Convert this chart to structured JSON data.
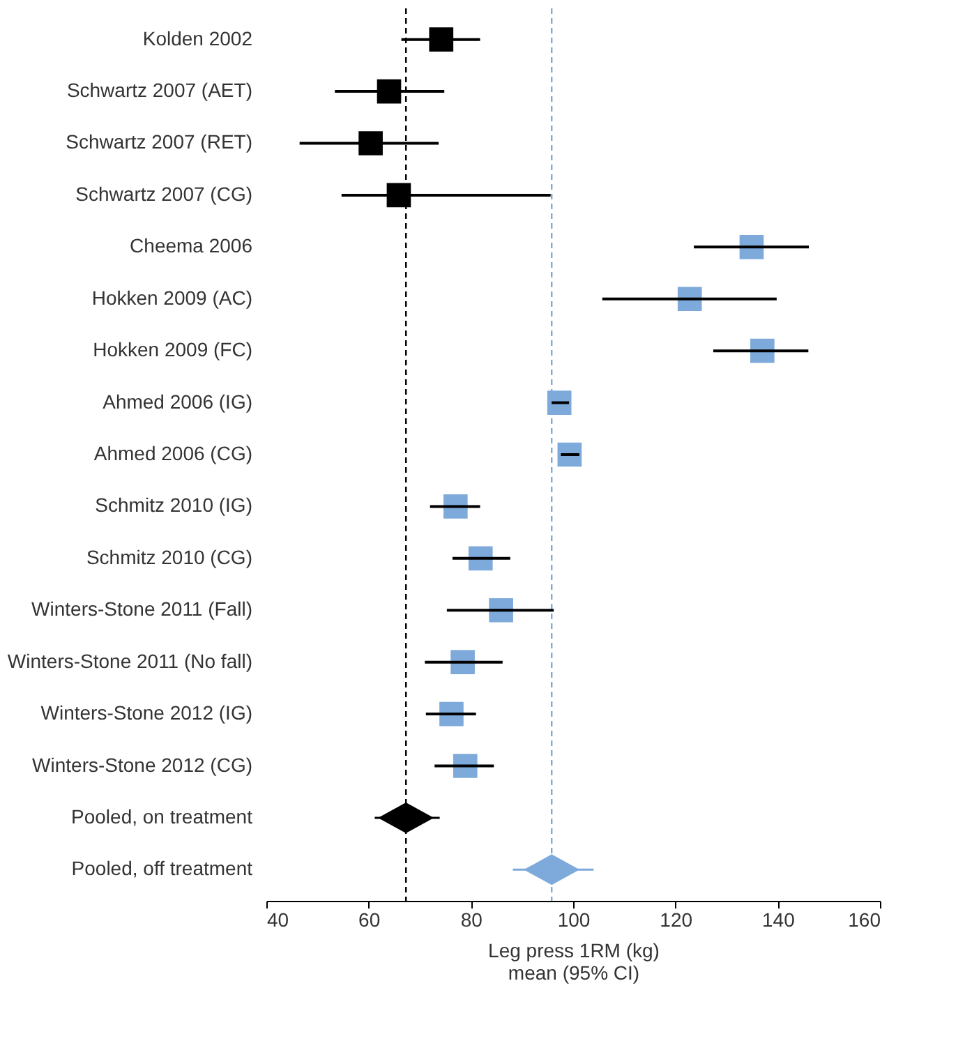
{
  "chart_data": {
    "type": "scatter",
    "categories": [
      "Kolden 2002",
      "Schwartz 2007 (AET)",
      "Schwartz 2007 (RET)",
      "Schwartz 2007 (CG)",
      "Cheema 2006",
      "Hokken 2009 (AC)",
      "Hokken 2009 (FC)",
      "Ahmed 2006 (IG)",
      "Ahmed 2006 (CG)",
      "Schmitz 2010 (IG)",
      "Schmitz 2010 (CG)",
      "Winters-Stone 2011 (Fall)",
      "Winters-Stone 2011 (No fall)",
      "Winters-Stone 2012 (IG)",
      "Winters-Stone 2012 (CG)",
      "Pooled, on treatment",
      "Pooled, off treatment"
    ],
    "series": [
      {
        "color": "#000000",
        "marker": "square",
        "values": [
          74.2,
          64.0,
          60.4,
          65.9,
          null,
          null,
          null,
          null,
          null,
          null,
          null,
          null,
          null,
          null,
          null,
          null,
          null
        ],
        "errors": [
          [
            66.4,
            81.8
          ],
          [
            53.4,
            74.8
          ],
          [
            46.5,
            73.7
          ],
          [
            54.7,
            95.6
          ],
          null,
          null,
          null,
          null,
          null,
          null,
          null,
          null,
          null,
          null,
          null,
          null,
          null
        ]
      },
      {
        "color": "#7eaadb",
        "marker": "square",
        "values": [
          null,
          null,
          null,
          null,
          134.9,
          122.8,
          137.0,
          97.3,
          99.3,
          77.0,
          81.9,
          85.9,
          78.4,
          76.2,
          78.9,
          null,
          null
        ],
        "errors": [
          null,
          null,
          null,
          null,
          [
            123.6,
            146.1
          ],
          [
            105.7,
            139.8
          ],
          [
            127.4,
            146.0
          ],
          [
            95.8,
            99.2
          ],
          [
            97.6,
            101.2
          ],
          [
            72.0,
            81.8
          ],
          [
            76.4,
            87.7
          ],
          [
            75.3,
            96.2
          ],
          [
            71.0,
            86.2
          ],
          [
            71.2,
            81.0
          ],
          [
            72.9,
            84.5
          ],
          null,
          null
        ]
      },
      {
        "color": "#000000",
        "marker": "diamond",
        "values": [
          null,
          null,
          null,
          null,
          null,
          null,
          null,
          null,
          null,
          null,
          null,
          null,
          null,
          null,
          null,
          67.3,
          null
        ],
        "errors": [
          null,
          null,
          null,
          null,
          null,
          null,
          null,
          null,
          null,
          null,
          null,
          null,
          null,
          null,
          null,
          [
            61.2,
            73.9
          ],
          null
        ]
      },
      {
        "color": "#7eaadb",
        "marker": "diamond",
        "values": [
          null,
          null,
          null,
          null,
          null,
          null,
          null,
          null,
          null,
          null,
          null,
          null,
          null,
          null,
          null,
          null,
          95.8
        ],
        "errors": [
          null,
          null,
          null,
          null,
          null,
          null,
          null,
          null,
          null,
          null,
          null,
          null,
          null,
          null,
          null,
          null,
          [
            88.2,
            104.0
          ]
        ]
      }
    ],
    "orientation": "horizontal",
    "xlim": [
      40,
      160
    ],
    "xticks": [
      40,
      60,
      80,
      100,
      120,
      140,
      160
    ],
    "xlabel": "Leg press 1RM (kg)\nmean (95% CI)",
    "grid": false,
    "ref_lines": [
      {
        "axis": "x",
        "value": 67.3,
        "color": "#000000",
        "line_style": "dashed"
      },
      {
        "axis": "x",
        "value": 95.8,
        "color": "#7eaadb",
        "line_style": "dashed"
      }
    ]
  }
}
